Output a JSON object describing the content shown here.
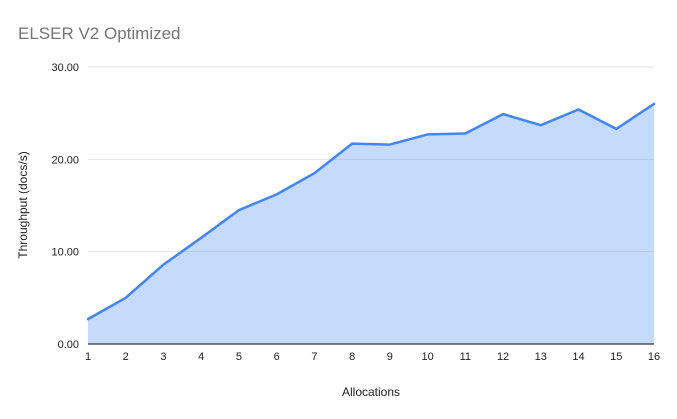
{
  "chart_data": {
    "type": "area",
    "title": "ELSER V2 Optimized",
    "xlabel": "Allocations",
    "ylabel": "Throughput (docs/s)",
    "x": [
      1,
      2,
      3,
      4,
      5,
      6,
      7,
      8,
      9,
      10,
      11,
      12,
      13,
      14,
      15,
      16
    ],
    "values": [
      2.7,
      5.0,
      8.6,
      11.5,
      14.5,
      16.2,
      18.5,
      21.7,
      21.6,
      22.7,
      22.8,
      24.9,
      23.7,
      25.4,
      23.3,
      26.0
    ],
    "series_name": "Throughput (docs/s)",
    "xlim": [
      1,
      16
    ],
    "ylim": [
      0,
      30
    ],
    "y_ticks": [
      0,
      10,
      20,
      30
    ],
    "y_tick_labels": [
      "0.00",
      "10.00",
      "20.00",
      "30.00"
    ],
    "x_tick_labels": [
      "1",
      "2",
      "3",
      "4",
      "5",
      "6",
      "7",
      "8",
      "9",
      "10",
      "11",
      "12",
      "13",
      "14",
      "15",
      "16"
    ],
    "grid": true,
    "legend": "none",
    "colors": {
      "line": "#4285f4",
      "fill": "rgba(66,133,244,0.30)",
      "gridline": "#e6e6e6",
      "axis_line": "#333333",
      "title_text": "#757575",
      "axis_title_text": "#222222",
      "tick_text": "#222222",
      "background": "#ffffff"
    }
  }
}
